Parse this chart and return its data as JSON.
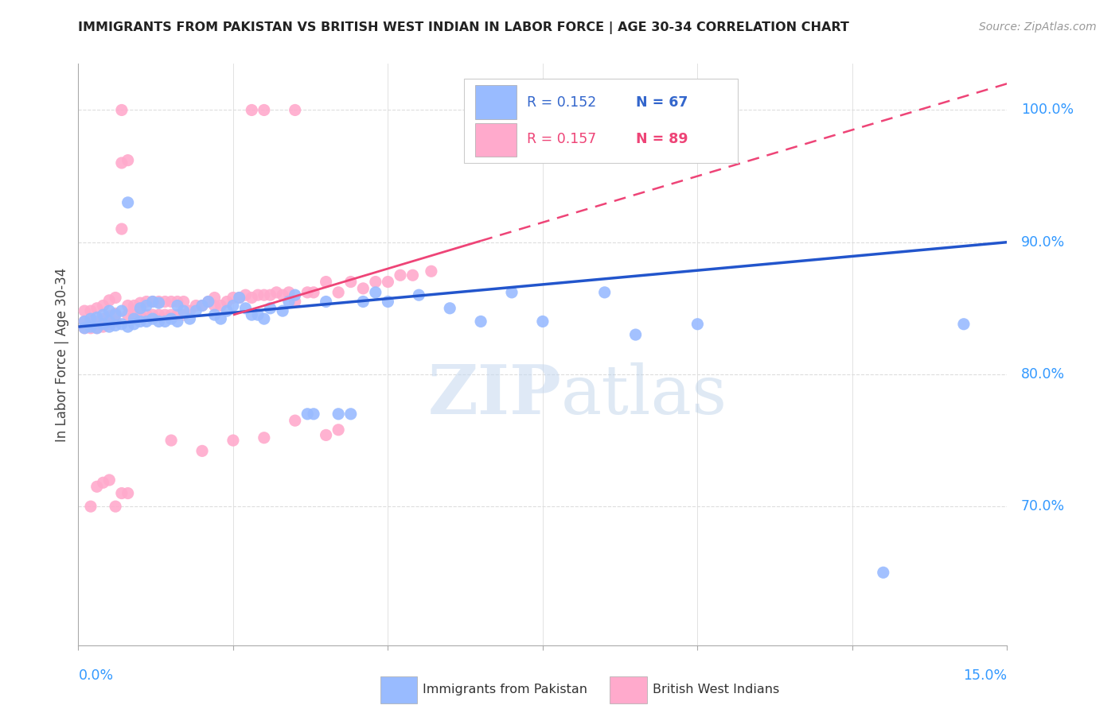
{
  "title": "IMMIGRANTS FROM PAKISTAN VS BRITISH WEST INDIAN IN LABOR FORCE | AGE 30-34 CORRELATION CHART",
  "source": "Source: ZipAtlas.com",
  "ylabel": "In Labor Force | Age 30-34",
  "xmin": 0.0,
  "xmax": 0.15,
  "ymin": 0.595,
  "ymax": 1.035,
  "blue_color": "#99bbff",
  "pink_color": "#ffaacc",
  "line_blue_color": "#2255cc",
  "line_pink_color": "#ee4477",
  "legend_R_blue": "R = 0.152",
  "legend_N_blue": "N = 67",
  "legend_R_pink": "R = 0.157",
  "legend_N_pink": "N = 89",
  "watermark_zip": "ZIP",
  "watermark_atlas": "atlas",
  "blue_trend_x0": 0.0,
  "blue_trend_y0": 0.836,
  "blue_trend_x1": 0.15,
  "blue_trend_y1": 0.9,
  "pink_trend_x0": 0.025,
  "pink_trend_y0": 0.845,
  "pink_trend_x1": 0.15,
  "pink_trend_y1": 1.02,
  "blue_points_x": [
    0.001,
    0.001,
    0.002,
    0.002,
    0.003,
    0.003,
    0.004,
    0.004,
    0.005,
    0.005,
    0.005,
    0.006,
    0.006,
    0.007,
    0.007,
    0.008,
    0.008,
    0.009,
    0.009,
    0.01,
    0.01,
    0.011,
    0.011,
    0.012,
    0.012,
    0.013,
    0.013,
    0.014,
    0.015,
    0.016,
    0.016,
    0.017,
    0.018,
    0.019,
    0.02,
    0.021,
    0.022,
    0.023,
    0.024,
    0.025,
    0.026,
    0.027,
    0.028,
    0.029,
    0.03,
    0.031,
    0.033,
    0.034,
    0.035,
    0.037,
    0.038,
    0.04,
    0.042,
    0.044,
    0.046,
    0.048,
    0.05,
    0.055,
    0.06,
    0.065,
    0.07,
    0.075,
    0.085,
    0.09,
    0.1,
    0.13,
    0.143
  ],
  "blue_points_y": [
    0.835,
    0.84,
    0.836,
    0.842,
    0.835,
    0.843,
    0.838,
    0.845,
    0.836,
    0.84,
    0.848,
    0.837,
    0.845,
    0.838,
    0.848,
    0.836,
    0.93,
    0.838,
    0.842,
    0.84,
    0.85,
    0.84,
    0.852,
    0.842,
    0.855,
    0.84,
    0.854,
    0.84,
    0.842,
    0.84,
    0.852,
    0.848,
    0.842,
    0.848,
    0.852,
    0.855,
    0.845,
    0.842,
    0.848,
    0.852,
    0.858,
    0.85,
    0.845,
    0.845,
    0.842,
    0.85,
    0.848,
    0.855,
    0.86,
    0.77,
    0.77,
    0.855,
    0.77,
    0.77,
    0.855,
    0.862,
    0.855,
    0.86,
    0.85,
    0.84,
    0.862,
    0.84,
    0.862,
    0.83,
    0.838,
    0.65,
    0.838
  ],
  "pink_points_x": [
    0.001,
    0.001,
    0.001,
    0.002,
    0.002,
    0.002,
    0.003,
    0.003,
    0.003,
    0.004,
    0.004,
    0.004,
    0.005,
    0.005,
    0.005,
    0.006,
    0.006,
    0.006,
    0.007,
    0.007,
    0.007,
    0.008,
    0.008,
    0.008,
    0.009,
    0.009,
    0.01,
    0.01,
    0.011,
    0.011,
    0.012,
    0.012,
    0.013,
    0.013,
    0.014,
    0.014,
    0.015,
    0.015,
    0.016,
    0.016,
    0.017,
    0.017,
    0.018,
    0.019,
    0.02,
    0.021,
    0.022,
    0.022,
    0.023,
    0.024,
    0.025,
    0.026,
    0.027,
    0.028,
    0.029,
    0.03,
    0.031,
    0.032,
    0.033,
    0.034,
    0.035,
    0.037,
    0.038,
    0.04,
    0.042,
    0.044,
    0.046,
    0.048,
    0.05,
    0.052,
    0.054,
    0.057,
    0.002,
    0.003,
    0.004,
    0.005,
    0.006,
    0.007,
    0.008,
    0.015,
    0.02,
    0.025,
    0.03,
    0.035,
    0.04,
    0.042,
    0.028,
    0.03,
    0.035
  ],
  "pink_points_y": [
    0.835,
    0.84,
    0.848,
    0.835,
    0.84,
    0.848,
    0.835,
    0.84,
    0.85,
    0.836,
    0.842,
    0.852,
    0.838,
    0.844,
    0.856,
    0.84,
    0.846,
    0.858,
    0.91,
    0.96,
    1.0,
    0.845,
    0.852,
    0.962,
    0.845,
    0.852,
    0.845,
    0.854,
    0.845,
    0.855,
    0.845,
    0.855,
    0.845,
    0.855,
    0.845,
    0.855,
    0.845,
    0.855,
    0.845,
    0.855,
    0.845,
    0.855,
    0.848,
    0.852,
    0.852,
    0.855,
    0.852,
    0.858,
    0.852,
    0.855,
    0.858,
    0.858,
    0.86,
    0.858,
    0.86,
    0.86,
    0.86,
    0.862,
    0.86,
    0.862,
    0.855,
    0.862,
    0.862,
    0.87,
    0.862,
    0.87,
    0.865,
    0.87,
    0.87,
    0.875,
    0.875,
    0.878,
    0.7,
    0.715,
    0.718,
    0.72,
    0.7,
    0.71,
    0.71,
    0.75,
    0.742,
    0.75,
    0.752,
    0.765,
    0.754,
    0.758,
    1.0,
    1.0,
    1.0
  ]
}
